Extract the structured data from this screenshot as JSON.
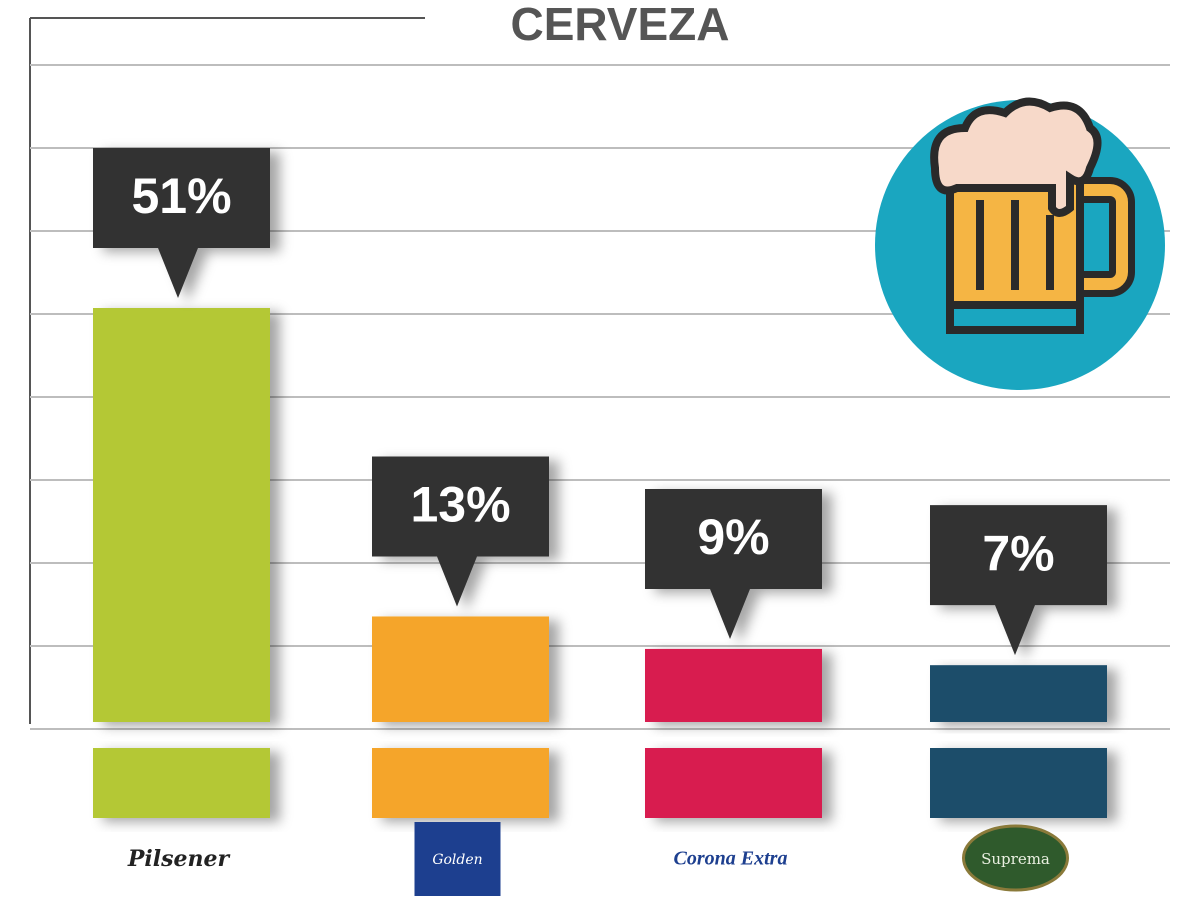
{
  "chart_data": {
    "type": "bar",
    "title": "CERVEZA",
    "categories": [
      "Pilsener",
      "Golden",
      "Corona Extra",
      "Suprema"
    ],
    "values": [
      51,
      13,
      9,
      7
    ],
    "value_labels": [
      "51%",
      "13%",
      "9%",
      "7%"
    ],
    "colors": [
      "#b4c834",
      "#f5a52a",
      "#d81f4f",
      "#1c4d6b"
    ]
  }
}
